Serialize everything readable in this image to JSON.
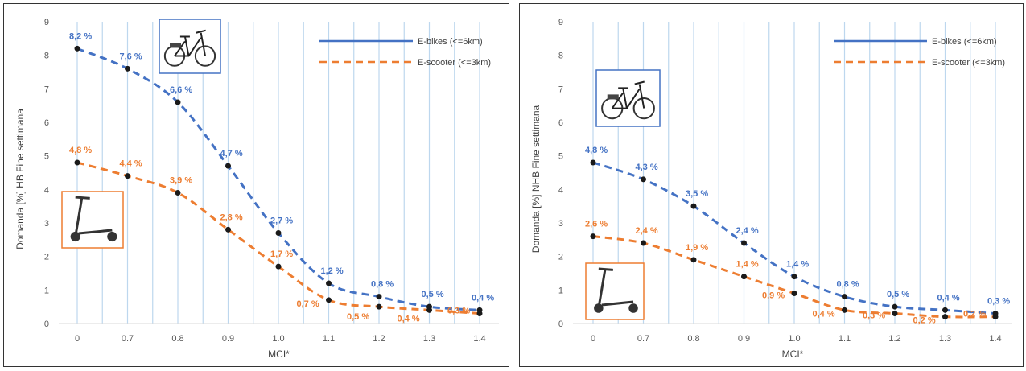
{
  "colors": {
    "ebike": "#4472C4",
    "escooter": "#ED7D31",
    "marker": "#1a1a1a",
    "vertical_band": "#BDD7EE",
    "axis": "#D9D9D9"
  },
  "icons": {
    "ebike_image": "e-bike-photo",
    "escooter_image": "e-scooter-photo"
  },
  "chart_data": [
    {
      "type": "line",
      "title": "",
      "xlabel": "MCI*",
      "ylabel": "Domanda [%] HB Fine settimana",
      "categories": [
        "0",
        "0.7",
        "0.8",
        "0.9",
        "1.0",
        "1.1",
        "1.2",
        "1.3",
        "1.4"
      ],
      "ylim": [
        0,
        9
      ],
      "yticks": [
        "0",
        "1",
        "2",
        "3",
        "4",
        "5",
        "6",
        "7",
        "8",
        "9"
      ],
      "grid": "vertical",
      "legend": "top-right",
      "series": [
        {
          "name": "E-bikes (<=6km)",
          "color": "#4472C4",
          "values": [
            8.2,
            7.6,
            6.6,
            4.7,
            2.7,
            1.2,
            0.8,
            0.5,
            0.4
          ],
          "labels": [
            "8,2 %",
            "7,6 %",
            "6,6 %",
            "4,7 %",
            "2,7 %",
            "1,2 %",
            "0,8 %",
            "0,5 %",
            "0,4 %"
          ]
        },
        {
          "name": "E-scooter (<=3km)",
          "color": "#ED7D31",
          "values": [
            4.8,
            4.4,
            3.9,
            2.8,
            1.7,
            0.7,
            0.5,
            0.4,
            0.3
          ],
          "labels": [
            "4,8 %",
            "4,4 %",
            "3,9 %",
            "2,8 %",
            "1,7 %",
            "0,7 %",
            "0,5 %",
            "0,4 %",
            "0,3 %"
          ]
        }
      ]
    },
    {
      "type": "line",
      "title": "",
      "xlabel": "MCI*",
      "ylabel": "Domanda [%] NHB Fine settimana",
      "categories": [
        "0",
        "0.7",
        "0.8",
        "0.9",
        "1.0",
        "1.1",
        "1.2",
        "1.3",
        "1.4"
      ],
      "ylim": [
        0,
        9
      ],
      "yticks": [
        "0",
        "1",
        "2",
        "3",
        "4",
        "5",
        "6",
        "7",
        "8",
        "9"
      ],
      "grid": "vertical",
      "legend": "top-right",
      "series": [
        {
          "name": "E-bikes (<=6km)",
          "color": "#4472C4",
          "values": [
            4.8,
            4.3,
            3.5,
            2.4,
            1.4,
            0.8,
            0.5,
            0.4,
            0.3
          ],
          "labels": [
            "4,8 %",
            "4,3 %",
            "3,5 %",
            "2,4 %",
            "1,4 %",
            "0,8 %",
            "0,5 %",
            "0,4 %",
            "0,3 %"
          ]
        },
        {
          "name": "E-scooter (<=3km)",
          "color": "#ED7D31",
          "values": [
            2.6,
            2.4,
            1.9,
            1.4,
            0.9,
            0.4,
            0.3,
            0.2,
            0.2
          ],
          "labels": [
            "2,6 %",
            "2,4 %",
            "1,9 %",
            "1,4 %",
            "0,9 %",
            "0,4 %",
            "0,3 %",
            "0,2 %",
            "0,2 %"
          ]
        }
      ]
    }
  ]
}
